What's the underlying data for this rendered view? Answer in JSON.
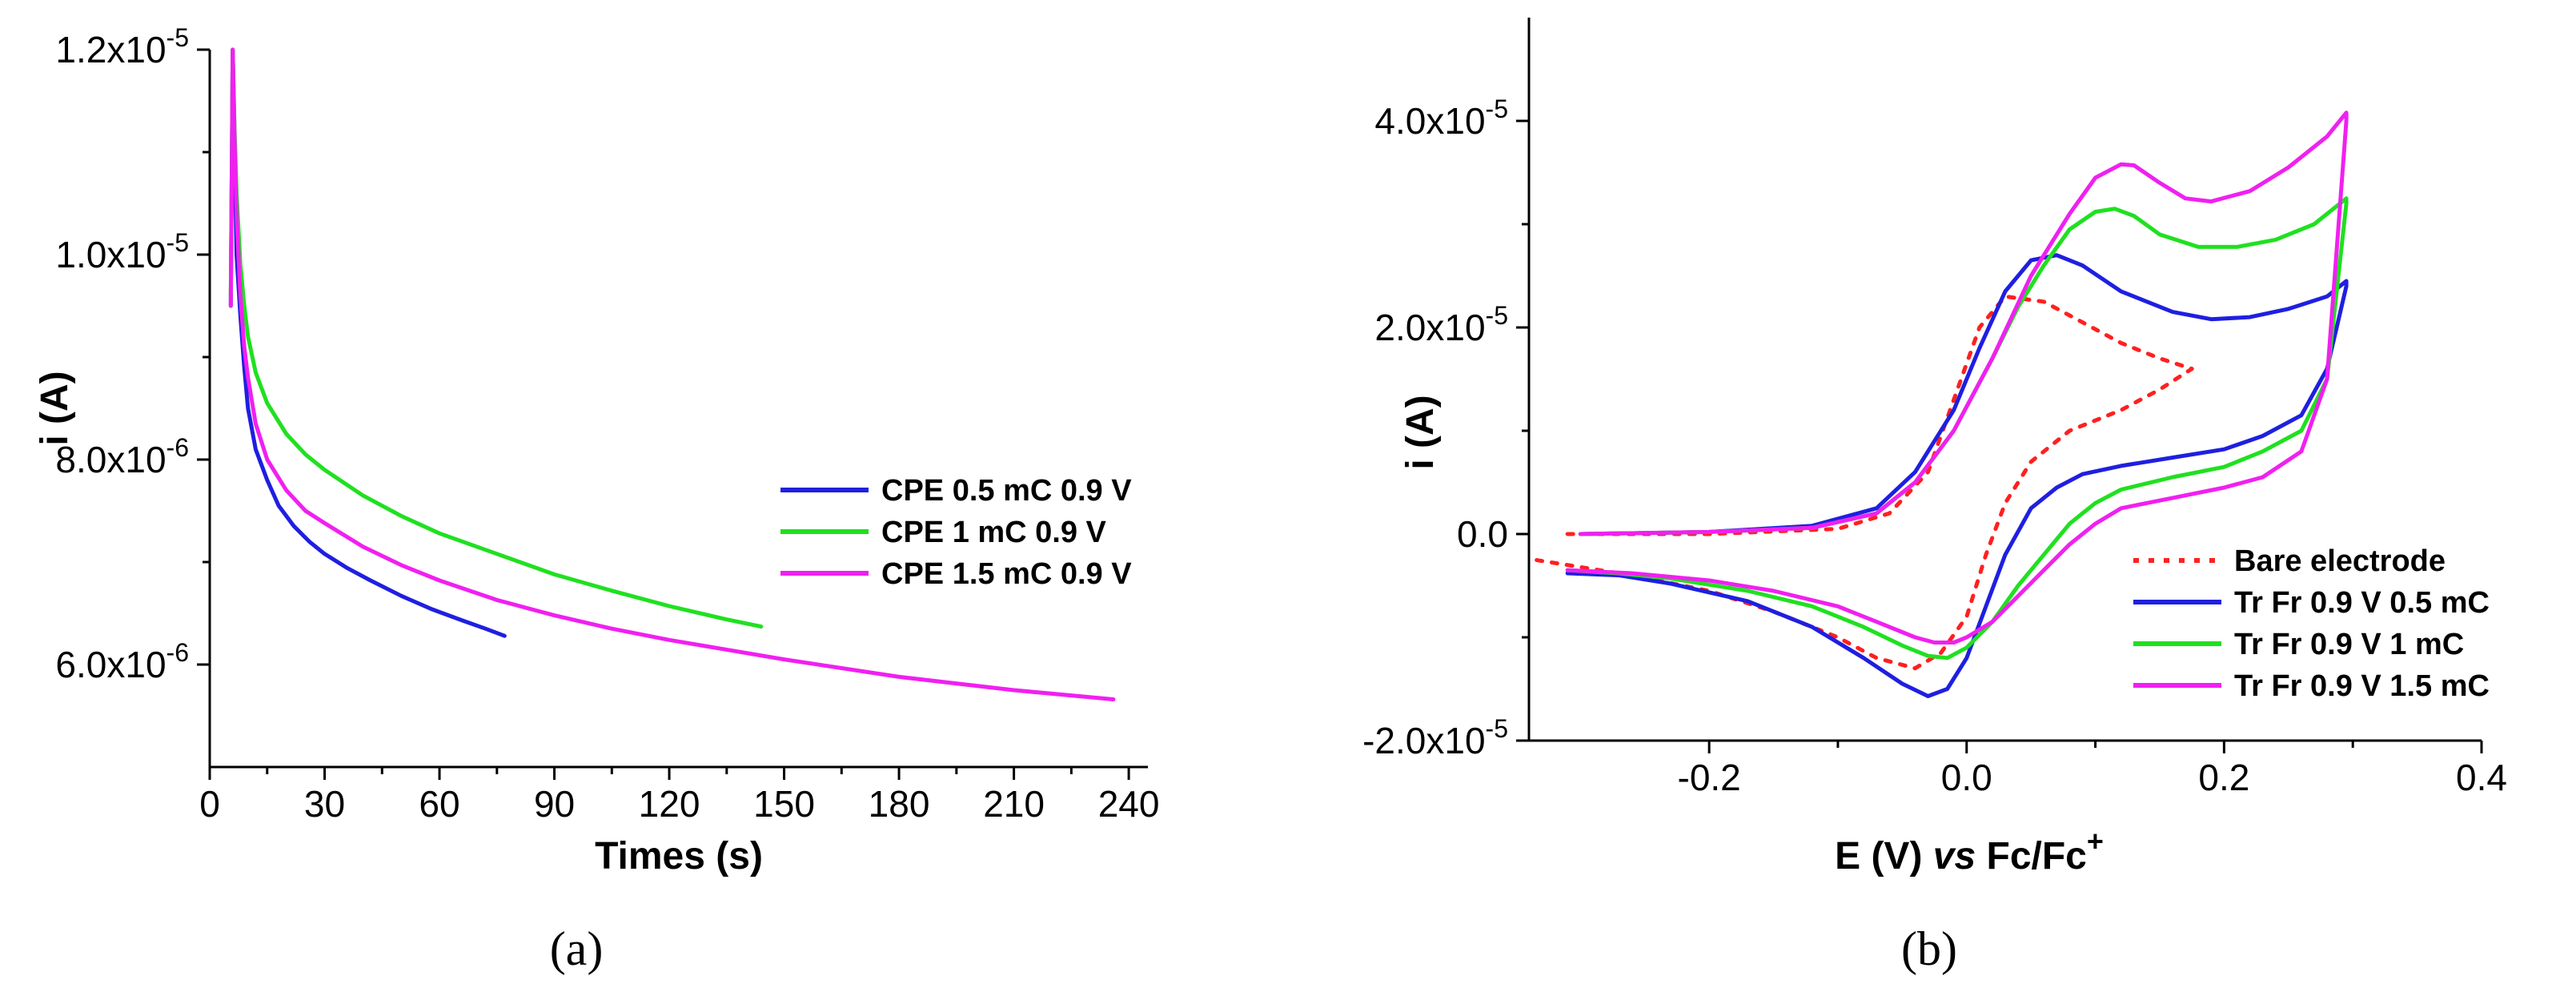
{
  "chart_data": [
    {
      "type": "line",
      "panel_label": "(a)",
      "title": "",
      "xlabel": "Times (s)",
      "ylabel": "i (A)",
      "xlim": [
        0,
        245
      ],
      "ylim": [
        5e-06,
        1.2e-05
      ],
      "xticks": [
        0,
        30,
        60,
        90,
        120,
        150,
        180,
        210,
        240
      ],
      "xtick_labels": [
        "0",
        "30",
        "60",
        "90",
        "120",
        "150",
        "180",
        "210",
        "240"
      ],
      "yticks": [
        6e-06,
        8e-06,
        1e-05,
        1.2e-05
      ],
      "ytick_labels": [
        {
          "base": "6.0x10",
          "exp": "-6"
        },
        {
          "base": "8.0x10",
          "exp": "-6"
        },
        {
          "base": "1.0x10",
          "exp": "-5"
        },
        {
          "base": "1.2x10",
          "exp": "-5"
        }
      ],
      "legend_position": "center-right",
      "series": [
        {
          "name": "CPE 0.5 mC 0.9 V",
          "color": "#1f1fe0",
          "style": "solid",
          "x": [
            5.5,
            6.0,
            6.5,
            7.0,
            8,
            9,
            10,
            12,
            15,
            18,
            22,
            26,
            30,
            36,
            42,
            50,
            58,
            66,
            72,
            77
          ],
          "y": [
            9.5e-06,
            1.2e-05,
            1.1e-05,
            1e-05,
            9.4e-06,
            8.9e-06,
            8.5e-06,
            8.1e-06,
            7.8e-06,
            7.55e-06,
            7.35e-06,
            7.2e-06,
            7.08e-06,
            6.94e-06,
            6.82e-06,
            6.67e-06,
            6.54e-06,
            6.43e-06,
            6.35e-06,
            6.28e-06
          ]
        },
        {
          "name": "CPE 1 mC 0.9 V",
          "color": "#20e020",
          "style": "solid",
          "x": [
            5.5,
            6.0,
            6.5,
            7,
            8,
            9,
            10,
            12,
            15,
            20,
            25,
            30,
            40,
            50,
            60,
            75,
            90,
            105,
            120,
            135,
            144
          ],
          "y": [
            9.6e-06,
            1.2e-05,
            1.12e-05,
            1.06e-05,
            9.9e-06,
            9.5e-06,
            9.2e-06,
            8.85e-06,
            8.55e-06,
            8.25e-06,
            8.05e-06,
            7.9e-06,
            7.65e-06,
            7.45e-06,
            7.28e-06,
            7.08e-06,
            6.88e-06,
            6.72e-06,
            6.57e-06,
            6.44e-06,
            6.37e-06
          ]
        },
        {
          "name": "CPE 1.5 mC 0.9 V",
          "color": "#f020f0",
          "style": "solid",
          "x": [
            5.5,
            6.0,
            6.5,
            7,
            8,
            9,
            10,
            12,
            15,
            20,
            25,
            30,
            40,
            50,
            60,
            75,
            90,
            105,
            120,
            150,
            180,
            210,
            236
          ],
          "y": [
            9.5e-06,
            1.2e-05,
            1.11e-05,
            1.04e-05,
            9.6e-06,
            9.1e-06,
            8.8e-06,
            8.35e-06,
            8e-06,
            7.7e-06,
            7.5e-06,
            7.38e-06,
            7.15e-06,
            6.97e-06,
            6.82e-06,
            6.63e-06,
            6.48e-06,
            6.35e-06,
            6.24e-06,
            6.05e-06,
            5.88e-06,
            5.75e-06,
            5.66e-06
          ]
        }
      ]
    },
    {
      "type": "line",
      "panel_label": "(b)",
      "title": "",
      "xlabel_parts": {
        "prefix": "E (V) ",
        "italic": "vs",
        "suffix": " Fc/Fc",
        "sup": "+"
      },
      "ylabel": "i (A)",
      "xlim": [
        -0.34,
        0.4
      ],
      "ylim": [
        -2e-05,
        5e-05
      ],
      "xticks": [
        -0.2,
        0.0,
        0.2,
        0.4
      ],
      "xtick_labels": [
        "-0.2",
        "0.0",
        "0.2",
        "0.4"
      ],
      "yticks": [
        -2e-05,
        0.0,
        2e-05,
        4e-05
      ],
      "ytick_labels": [
        {
          "base": "-2.0x10",
          "exp": "-5"
        },
        {
          "base": "0.0",
          "exp": ""
        },
        {
          "base": "2.0x10",
          "exp": "-5"
        },
        {
          "base": "4.0x10",
          "exp": "-5"
        }
      ],
      "legend_position": "bottom-right",
      "series": [
        {
          "name": "Bare electrode",
          "color": "#ff2020",
          "style": "dotted",
          "x": [
            -0.31,
            -0.2,
            -0.1,
            -0.06,
            -0.03,
            -0.01,
            0.01,
            0.03,
            0.06,
            0.09,
            0.12,
            0.15,
            0.175,
            0.15,
            0.12,
            0.08,
            0.05,
            0.03,
            0.015,
            0.0,
            -0.02,
            -0.04,
            -0.07,
            -0.1,
            -0.15,
            -0.2,
            -0.26,
            -0.31,
            -0.335
          ],
          "y": [
            0.0,
            0.0,
            5e-07,
            2e-06,
            6e-06,
            1.3e-05,
            2e-05,
            2.3e-05,
            2.25e-05,
            2.05e-05,
            1.85e-05,
            1.7e-05,
            1.6e-05,
            1.4e-05,
            1.2e-05,
            1e-05,
            7e-06,
            3e-06,
            -2e-06,
            -8e-06,
            -1.15e-05,
            -1.3e-05,
            -1.2e-05,
            -1e-05,
            -7.5e-06,
            -5.5e-06,
            -4e-06,
            -3e-06,
            -2.5e-06
          ]
        },
        {
          "name": "Tr Fr 0.9 V 0.5 mC",
          "color": "#1f1fe0",
          "style": "solid",
          "x": [
            -0.3,
            -0.2,
            -0.12,
            -0.07,
            -0.04,
            -0.01,
            0.01,
            0.03,
            0.05,
            0.07,
            0.09,
            0.12,
            0.16,
            0.19,
            0.22,
            0.25,
            0.28,
            0.295,
            0.295,
            0.28,
            0.26,
            0.23,
            0.2,
            0.16,
            0.12,
            0.09,
            0.07,
            0.05,
            0.03,
            0.015,
            0.0,
            -0.015,
            -0.03,
            -0.05,
            -0.08,
            -0.12,
            -0.17,
            -0.23,
            -0.27,
            -0.31
          ],
          "y": [
            0.0,
            2e-07,
            8e-07,
            2.5e-06,
            6e-06,
            1.2e-05,
            1.8e-05,
            2.35e-05,
            2.65e-05,
            2.7e-05,
            2.6e-05,
            2.35e-05,
            2.15e-05,
            2.08e-05,
            2.1e-05,
            2.18e-05,
            2.3e-05,
            2.45e-05,
            2.4e-05,
            1.6e-05,
            1.15e-05,
            9.5e-06,
            8.2e-06,
            7.4e-06,
            6.6e-06,
            5.8e-06,
            4.5e-06,
            2.5e-06,
            -2e-06,
            -7e-06,
            -1.2e-05,
            -1.5e-05,
            -1.57e-05,
            -1.45e-05,
            -1.2e-05,
            -9e-06,
            -6.5e-06,
            -4.8e-06,
            -4e-06,
            -3.8e-06
          ]
        },
        {
          "name": "Tr Fr 0.9 V 1 mC",
          "color": "#20e020",
          "style": "solid",
          "x": [
            -0.3,
            -0.2,
            -0.12,
            -0.07,
            -0.04,
            -0.01,
            0.02,
            0.04,
            0.06,
            0.08,
            0.1,
            0.115,
            0.13,
            0.15,
            0.18,
            0.21,
            0.24,
            0.27,
            0.295,
            0.295,
            0.28,
            0.26,
            0.23,
            0.2,
            0.16,
            0.12,
            0.1,
            0.08,
            0.06,
            0.04,
            0.02,
            0.0,
            -0.015,
            -0.03,
            -0.05,
            -0.08,
            -0.12,
            -0.17,
            -0.23,
            -0.27,
            -0.31
          ],
          "y": [
            0.0,
            2e-07,
            6e-07,
            2e-06,
            5e-06,
            1e-05,
            1.7e-05,
            2.2e-05,
            2.6e-05,
            2.95e-05,
            3.12e-05,
            3.15e-05,
            3.08e-05,
            2.9e-05,
            2.78e-05,
            2.78e-05,
            2.85e-05,
            3e-05,
            3.25e-05,
            3.2e-05,
            1.5e-05,
            1e-05,
            8e-06,
            6.5e-06,
            5.5e-06,
            4.3e-06,
            3e-06,
            1e-06,
            -2e-06,
            -5e-06,
            -8.5e-06,
            -1.1e-05,
            -1.2e-05,
            -1.18e-05,
            -1.08e-05,
            -9e-06,
            -7e-06,
            -5.5e-06,
            -4.3e-06,
            -3.8e-06,
            -3.5e-06
          ]
        },
        {
          "name": "Tr Fr 0.9 V 1.5 mC",
          "color": "#f020f0",
          "style": "solid",
          "x": [
            -0.3,
            -0.2,
            -0.12,
            -0.07,
            -0.04,
            -0.01,
            0.02,
            0.05,
            0.08,
            0.1,
            0.12,
            0.13,
            0.15,
            0.17,
            0.19,
            0.22,
            0.25,
            0.28,
            0.295,
            0.295,
            0.28,
            0.26,
            0.23,
            0.2,
            0.16,
            0.12,
            0.1,
            0.08,
            0.06,
            0.04,
            0.02,
            0.0,
            -0.01,
            -0.025,
            -0.04,
            -0.07,
            -0.1,
            -0.15,
            -0.2,
            -0.26,
            -0.31
          ],
          "y": [
            0.0,
            2e-07,
            6e-07,
            2e-06,
            5e-06,
            1e-05,
            1.7e-05,
            2.5e-05,
            3.1e-05,
            3.45e-05,
            3.58e-05,
            3.57e-05,
            3.4e-05,
            3.25e-05,
            3.22e-05,
            3.32e-05,
            3.55e-05,
            3.85e-05,
            4.08e-05,
            4e-05,
            1.5e-05,
            8e-06,
            5.5e-06,
            4.5e-06,
            3.5e-06,
            2.5e-06,
            1e-06,
            -1e-06,
            -3.5e-06,
            -6e-06,
            -8.5e-06,
            -1e-05,
            -1.05e-05,
            -1.05e-05,
            -1e-05,
            -8.5e-06,
            -7e-06,
            -5.5e-06,
            -4.5e-06,
            -3.8e-06,
            -3.5e-06
          ]
        }
      ]
    }
  ]
}
